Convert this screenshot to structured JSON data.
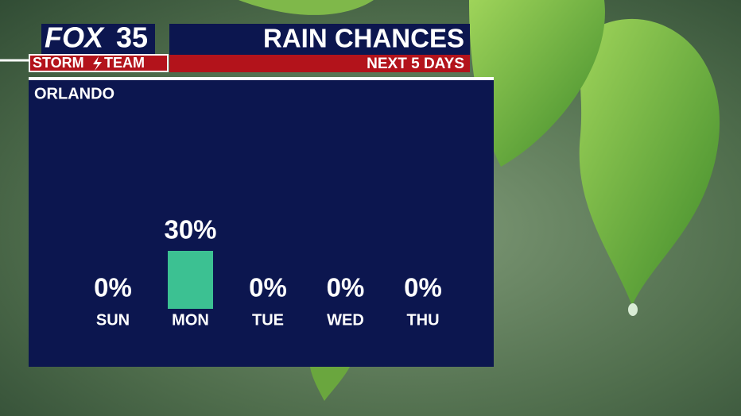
{
  "logo": {
    "brand": "FOX",
    "number": "35",
    "storm": "STORM",
    "team": "TEAM"
  },
  "chart_data": {
    "type": "bar",
    "title": "RAIN CHANCES",
    "subtitle": "NEXT 5 DAYS",
    "location": "ORLANDO",
    "categories": [
      "SUN",
      "MON",
      "TUE",
      "WED",
      "THU"
    ],
    "values": [
      0,
      30,
      0,
      0,
      0
    ],
    "value_labels": [
      "0%",
      "30%",
      "0%",
      "0%",
      "0%"
    ],
    "color": "#3cc192"
  }
}
